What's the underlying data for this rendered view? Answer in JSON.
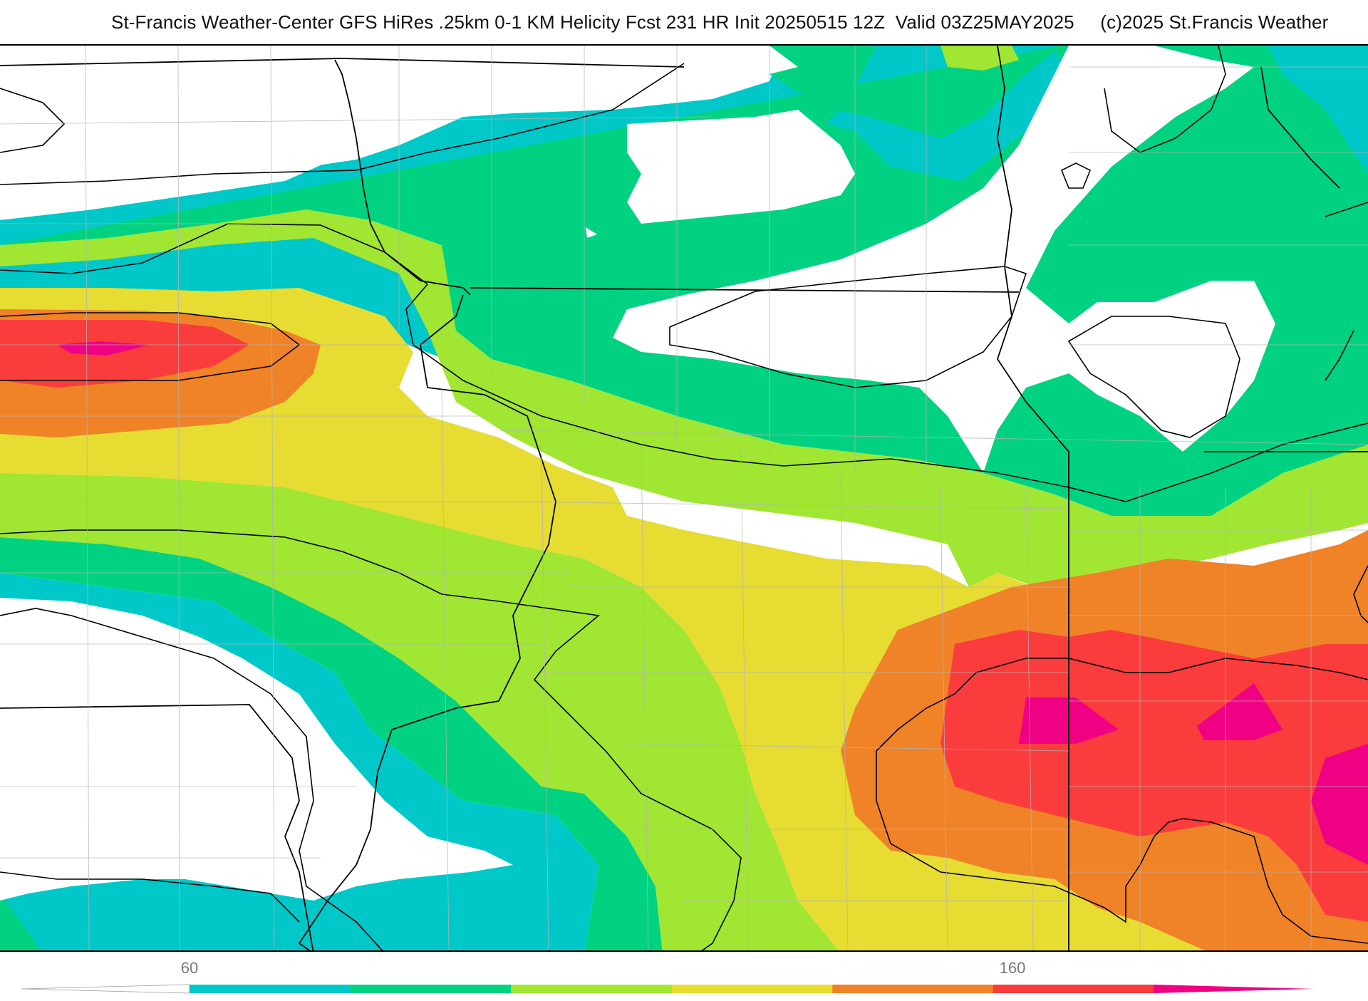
{
  "header": {
    "title": "St-Francis Weather-Center GFS HiRes .25km 0-1 KM Helicity Fcst 231 HR Init 20250515 12Z  Valid 03Z25MAY2025     (c)2025 St.Francis Weather"
  },
  "legend": {
    "tick_labels": [
      "60",
      "160"
    ],
    "colors": [
      "#00c8c8",
      "#00d282",
      "#a0e632",
      "#e6dc32",
      "#f08228",
      "#fa3c3c",
      "#f00082"
    ]
  },
  "map": {
    "fill_colors": {
      "cyan": "#00c8c8",
      "green": "#00d282",
      "lime": "#a0e632",
      "yellow": "#e6dc32",
      "orange": "#f08228",
      "red": "#fa3c3c",
      "magenta": "#f00082"
    },
    "line_color": "#000000",
    "county_line_color": "#bbbbbb"
  }
}
